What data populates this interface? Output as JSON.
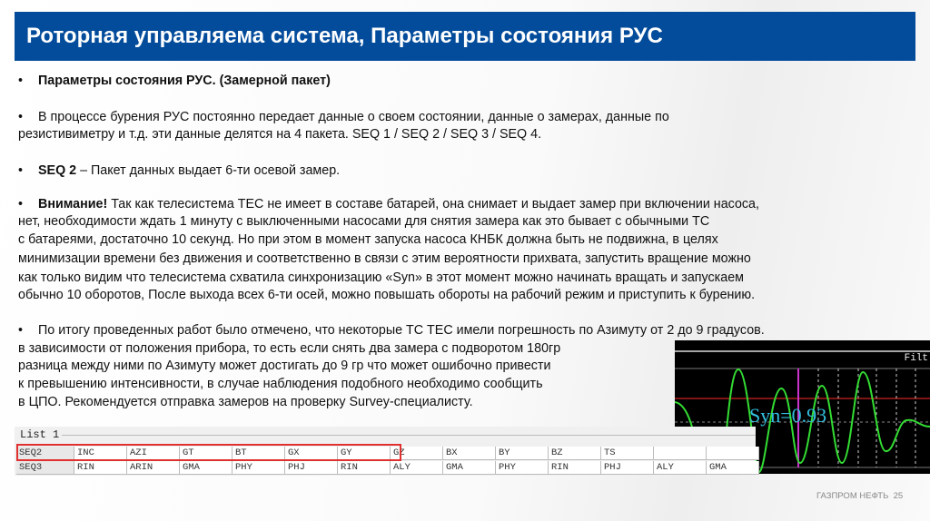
{
  "header": {
    "title": "Роторная управляема система, Параметры состояния РУС"
  },
  "bullet": "•",
  "paragraphs": [
    {
      "lines": [
        "Параметры состояния РУС. (Замерной пакет)"
      ],
      "bold_prefix": ""
    },
    {
      "lines": [
        "В процессе бурения РУС постоянно передает данные о своем состоянии, данные о замерах, данные по",
        "резистивиметру и т.д. эти данные делятся на 4 пакета. SEQ 1 / SEQ 2 / SEQ 3 / SEQ 4."
      ]
    },
    {
      "bold_prefix": "SEQ 2",
      "first_rest": " – Пакет данных выдает 6-ти осевой замер."
    },
    {
      "bold_prefix": "Внимание!",
      "first_rest": " Так как телесистема ТЕС не имеет в составе батарей, она снимает и выдает замер при включении насоса,",
      "lines": [
        "нет, необходимости ждать 1 минуту с выключенными насосами для снятия замера как это бывает с обычными ТС",
        "с батареями, достаточно 10 секунд. Но при этом в момент запуска насоса КНБК должна быть не подвижна, в целях",
        "минимизации времени без движения и соответственно в связи с этим вероятности прихвата, запустить вращение можно",
        "как только видим что телесистема схватила синхронизацию «Syn» в этот момент можно начинать вращать и запускаем",
        "обычно 10 оборотов, После выхода всех 6-ти осей, можно повышать обороты на рабочий режим и приступить к бурению."
      ]
    },
    {
      "lines": [
        "По итогу проведенных работ было отмечено, что некоторые ТС ТЕС имели погрешность по Азимуту от 2 до 9 градусов.",
        "в зависимости от положения прибора, то есть если снять два замера с подворотом 180гр",
        "разница между ними по Азимуту может достигать до 9 гр что может ошибочно привести",
        "к превышению интенсивности, в случае наблюдения подобного необходимо сообщить",
        "в ЦПО. Рекомендуется отправка замеров на проверку Survey-специалисту."
      ]
    }
  ],
  "list": {
    "title": "List 1",
    "rows": [
      [
        "SEQ2",
        "INC",
        "AZI",
        "GT",
        "BT",
        "GX",
        "GY",
        "GZ",
        "BX",
        "BY",
        "BZ",
        "TS",
        "",
        ""
      ],
      [
        "SEQ3",
        "RIN",
        "ARIN",
        "GMA",
        "PHY",
        "PHJ",
        "RIN",
        "ALY",
        "GMA",
        "PHY",
        "RIN",
        "PHJ",
        "ALY",
        "GMA"
      ]
    ]
  },
  "scope": {
    "filter_label": "Filt",
    "sync_label": "Syn=0.93",
    "colors": {
      "signal": "#33dd33",
      "sync": "#33c0e0",
      "marker": "#cc33cc",
      "reference": "#cc2222"
    }
  },
  "footer": {
    "brand": "ГАЗПРОМ НЕФТЬ",
    "page": "25"
  },
  "colors": {
    "title_bg": "#034c9b",
    "highlight": "#e03030"
  }
}
